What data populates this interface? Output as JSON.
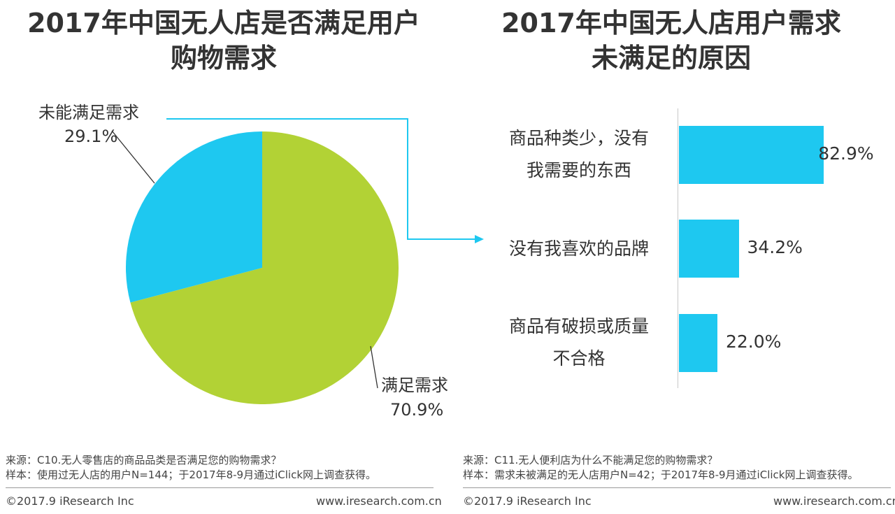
{
  "chart_data": [
    {
      "type": "pie",
      "title": "2017年中国无人店是否满足用户购物需求",
      "title_lines": [
        "2017年中国无人店是否满足用户",
        "购物需求"
      ],
      "slices": [
        {
          "label": "未能满足需求",
          "value": 29.1,
          "value_text": "29.1%",
          "color": "#1ec8f0"
        },
        {
          "label": "满足需求",
          "value": 70.9,
          "value_text": "70.9%",
          "color": "#b2d235"
        }
      ]
    },
    {
      "type": "bar",
      "orientation": "horizontal",
      "title": "2017年中国无人店用户需求未满足的原因",
      "title_lines": [
        "2017年中国无人店用户需求",
        "未满足的原因"
      ],
      "bar_color": "#1ec8f0",
      "categories": [
        {
          "lines": [
            "商品种类少，没有",
            "我需要的东西"
          ]
        },
        {
          "lines": [
            "没有我喜欢的品牌"
          ]
        },
        {
          "lines": [
            "商品有破损或质量",
            "不合格"
          ]
        }
      ],
      "values": [
        82.9,
        34.2,
        22.0
      ],
      "value_labels": [
        "82.9%",
        "34.2%",
        "22.0%"
      ],
      "xlim": [
        0,
        100
      ]
    }
  ],
  "left_footer": {
    "source": "来源：C10.无人零售店的商品品类是否满足您的购物需求？",
    "sample": "样本：使用过无人店的用户N=144；于2017年8-9月通过iClick网上调查获得。",
    "copyright": "©2017.9 iResearch Inc",
    "website": "www.iresearch.com.cn"
  },
  "right_footer": {
    "source": "来源：C11.无人便利店为什么不能满足您的购物需求？",
    "sample": "样本：需求未被满足的无人店用户N=42；于2017年8-9月通过iClick网上调查获得。",
    "copyright": "©2017.9 iResearch Inc",
    "website": "www.iresearch.com.cn"
  }
}
